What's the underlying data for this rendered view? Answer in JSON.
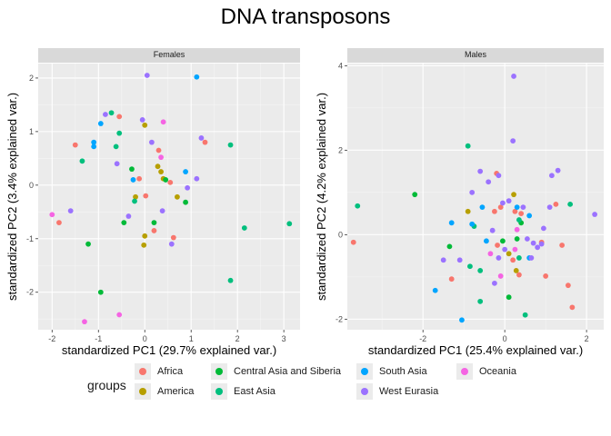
{
  "title": "DNA transposons",
  "legend": {
    "title": "groups",
    "entries": [
      {
        "label": "Africa",
        "color": "#F8766D"
      },
      {
        "label": "America",
        "color": "#B79F00"
      },
      {
        "label": "Central Asia and Siberia",
        "color": "#00BA38"
      },
      {
        "label": "East Asia",
        "color": "#00BF7D"
      },
      {
        "label": "South Asia",
        "color": "#00A5FF"
      },
      {
        "label": "West Eurasia",
        "color": "#9B72FF"
      },
      {
        "label": "Oceania",
        "color": "#F564E3"
      }
    ]
  },
  "chart_data": [
    {
      "type": "scatter",
      "facet": "Females",
      "xlabel": "standardized PC1 (29.7% explained var.)",
      "ylabel": "standardized PC2 (3.4% explained var.)",
      "xlim": [
        -2.3,
        3.35
      ],
      "ylim": [
        -2.7,
        2.27
      ],
      "xticks": [
        -2,
        -1,
        0,
        1,
        2,
        3
      ],
      "yticks": [
        -2,
        -1,
        0,
        1,
        2
      ],
      "grid": true,
      "points": [
        {
          "x": -1.5,
          "y": 0.75,
          "g": "Africa"
        },
        {
          "x": -1.85,
          "y": -0.7,
          "g": "Africa"
        },
        {
          "x": -0.55,
          "y": 1.28,
          "g": "Africa"
        },
        {
          "x": 0.02,
          "y": -0.2,
          "g": "Africa"
        },
        {
          "x": 0.3,
          "y": 0.65,
          "g": "Africa"
        },
        {
          "x": -0.12,
          "y": 0.12,
          "g": "Africa"
        },
        {
          "x": 0.2,
          "y": -0.85,
          "g": "Africa"
        },
        {
          "x": 0.62,
          "y": -0.98,
          "g": "Africa"
        },
        {
          "x": 0.55,
          "y": 0.05,
          "g": "Africa"
        },
        {
          "x": 1.3,
          "y": 0.8,
          "g": "Africa"
        },
        {
          "x": 0.0,
          "y": 1.12,
          "g": "America"
        },
        {
          "x": 0.28,
          "y": 0.35,
          "g": "America"
        },
        {
          "x": 0.35,
          "y": 0.25,
          "g": "America"
        },
        {
          "x": -0.2,
          "y": -0.22,
          "g": "America"
        },
        {
          "x": 0.0,
          "y": -0.95,
          "g": "America"
        },
        {
          "x": -0.02,
          "y": -1.12,
          "g": "America"
        },
        {
          "x": 0.7,
          "y": -0.22,
          "g": "America"
        },
        {
          "x": 0.4,
          "y": 0.12,
          "g": "America"
        },
        {
          "x": -0.95,
          "y": -2.0,
          "g": "Central Asia and Siberia"
        },
        {
          "x": -1.22,
          "y": -1.1,
          "g": "Central Asia and Siberia"
        },
        {
          "x": -0.45,
          "y": -0.7,
          "g": "Central Asia and Siberia"
        },
        {
          "x": 0.2,
          "y": -0.7,
          "g": "Central Asia and Siberia"
        },
        {
          "x": 0.88,
          "y": -0.32,
          "g": "Central Asia and Siberia"
        },
        {
          "x": 0.45,
          "y": 0.1,
          "g": "Central Asia and Siberia"
        },
        {
          "x": -0.28,
          "y": 0.3,
          "g": "Central Asia and Siberia"
        },
        {
          "x": -1.35,
          "y": 0.45,
          "g": "East Asia"
        },
        {
          "x": -0.72,
          "y": 1.35,
          "g": "East Asia"
        },
        {
          "x": -0.62,
          "y": 0.72,
          "g": "East Asia"
        },
        {
          "x": -0.55,
          "y": 0.97,
          "g": "East Asia"
        },
        {
          "x": -0.22,
          "y": -0.3,
          "g": "East Asia"
        },
        {
          "x": 1.85,
          "y": 0.75,
          "g": "East Asia"
        },
        {
          "x": 2.15,
          "y": -0.8,
          "g": "East Asia"
        },
        {
          "x": 3.12,
          "y": -0.72,
          "g": "East Asia"
        },
        {
          "x": 1.85,
          "y": -1.78,
          "g": "East Asia"
        },
        {
          "x": -1.1,
          "y": 0.8,
          "g": "South Asia"
        },
        {
          "x": -1.1,
          "y": 0.72,
          "g": "South Asia"
        },
        {
          "x": -0.95,
          "y": 1.15,
          "g": "South Asia"
        },
        {
          "x": 1.12,
          "y": 2.02,
          "g": "South Asia"
        },
        {
          "x": 0.88,
          "y": 0.25,
          "g": "South Asia"
        },
        {
          "x": -0.25,
          "y": 0.1,
          "g": "South Asia"
        },
        {
          "x": -1.6,
          "y": -0.48,
          "g": "West Eurasia"
        },
        {
          "x": -0.85,
          "y": 1.32,
          "g": "West Eurasia"
        },
        {
          "x": -0.05,
          "y": 1.22,
          "g": "West Eurasia"
        },
        {
          "x": 0.05,
          "y": 2.05,
          "g": "West Eurasia"
        },
        {
          "x": 0.15,
          "y": 0.8,
          "g": "West Eurasia"
        },
        {
          "x": -0.6,
          "y": 0.4,
          "g": "West Eurasia"
        },
        {
          "x": 0.38,
          "y": -0.48,
          "g": "West Eurasia"
        },
        {
          "x": -0.35,
          "y": -0.58,
          "g": "West Eurasia"
        },
        {
          "x": 0.58,
          "y": -1.1,
          "g": "West Eurasia"
        },
        {
          "x": 1.22,
          "y": 0.88,
          "g": "West Eurasia"
        },
        {
          "x": 1.12,
          "y": 0.12,
          "g": "West Eurasia"
        },
        {
          "x": 0.92,
          "y": -0.05,
          "g": "West Eurasia"
        },
        {
          "x": -2.0,
          "y": -0.55,
          "g": "Oceania"
        },
        {
          "x": -1.3,
          "y": -2.55,
          "g": "Oceania"
        },
        {
          "x": -0.55,
          "y": -2.42,
          "g": "Oceania"
        },
        {
          "x": 0.4,
          "y": 1.18,
          "g": "Oceania"
        },
        {
          "x": 0.35,
          "y": 0.52,
          "g": "Oceania"
        }
      ]
    },
    {
      "type": "scatter",
      "facet": "Males",
      "xlabel": "standardized PC1 (25.4% explained var.)",
      "ylabel": "standardized PC2 (4.2% explained var.)",
      "xlim": [
        -3.85,
        2.42
      ],
      "ylim": [
        -2.25,
        4.05
      ],
      "xticks": [
        -2,
        0,
        2
      ],
      "yticks": [
        -2,
        0,
        2,
        4
      ],
      "grid": true,
      "points": [
        {
          "x": -3.7,
          "y": -0.18,
          "g": "Africa"
        },
        {
          "x": -1.3,
          "y": -1.05,
          "g": "Africa"
        },
        {
          "x": -0.2,
          "y": 1.45,
          "g": "Africa"
        },
        {
          "x": -0.25,
          "y": 0.55,
          "g": "Africa"
        },
        {
          "x": -0.1,
          "y": 0.65,
          "g": "Africa"
        },
        {
          "x": -0.18,
          "y": -0.25,
          "g": "Africa"
        },
        {
          "x": 0.25,
          "y": 0.55,
          "g": "Africa"
        },
        {
          "x": 0.2,
          "y": -0.6,
          "g": "Africa"
        },
        {
          "x": 0.35,
          "y": -0.95,
          "g": "Africa"
        },
        {
          "x": 0.9,
          "y": -0.18,
          "g": "Africa"
        },
        {
          "x": 1.0,
          "y": -0.98,
          "g": "Africa"
        },
        {
          "x": 1.25,
          "y": 0.72,
          "g": "Africa"
        },
        {
          "x": 1.4,
          "y": -0.25,
          "g": "Africa"
        },
        {
          "x": 1.55,
          "y": -1.2,
          "g": "Africa"
        },
        {
          "x": 1.65,
          "y": -1.72,
          "g": "Africa"
        },
        {
          "x": 0.4,
          "y": 0.5,
          "g": "Africa"
        },
        {
          "x": -0.9,
          "y": 0.55,
          "g": "America"
        },
        {
          "x": 0.22,
          "y": 0.95,
          "g": "America"
        },
        {
          "x": 0.28,
          "y": -0.85,
          "g": "America"
        },
        {
          "x": 0.1,
          "y": -0.45,
          "g": "America"
        },
        {
          "x": -2.2,
          "y": 0.95,
          "g": "Central Asia and Siberia"
        },
        {
          "x": -1.35,
          "y": -0.28,
          "g": "Central Asia and Siberia"
        },
        {
          "x": -0.05,
          "y": -0.15,
          "g": "Central Asia and Siberia"
        },
        {
          "x": 0.1,
          "y": -1.48,
          "g": "Central Asia and Siberia"
        },
        {
          "x": 0.4,
          "y": 0.28,
          "g": "Central Asia and Siberia"
        },
        {
          "x": 0.3,
          "y": -0.1,
          "g": "Central Asia and Siberia"
        },
        {
          "x": -3.6,
          "y": 0.68,
          "g": "East Asia"
        },
        {
          "x": -0.9,
          "y": 2.1,
          "g": "East Asia"
        },
        {
          "x": -0.75,
          "y": 0.2,
          "g": "East Asia"
        },
        {
          "x": -0.6,
          "y": -0.85,
          "g": "East Asia"
        },
        {
          "x": -0.6,
          "y": -1.58,
          "g": "East Asia"
        },
        {
          "x": 0.35,
          "y": -0.55,
          "g": "East Asia"
        },
        {
          "x": 0.35,
          "y": 0.35,
          "g": "East Asia"
        },
        {
          "x": 0.5,
          "y": -1.9,
          "g": "East Asia"
        },
        {
          "x": 1.6,
          "y": 0.72,
          "g": "East Asia"
        },
        {
          "x": -0.85,
          "y": -0.75,
          "g": "East Asia"
        },
        {
          "x": -1.7,
          "y": -1.32,
          "g": "South Asia"
        },
        {
          "x": -1.3,
          "y": 0.28,
          "g": "South Asia"
        },
        {
          "x": -1.05,
          "y": -2.02,
          "g": "South Asia"
        },
        {
          "x": -0.8,
          "y": 0.25,
          "g": "South Asia"
        },
        {
          "x": -0.55,
          "y": 0.65,
          "g": "South Asia"
        },
        {
          "x": -0.45,
          "y": -0.15,
          "g": "South Asia"
        },
        {
          "x": 0.3,
          "y": 0.65,
          "g": "South Asia"
        },
        {
          "x": 0.6,
          "y": 0.45,
          "g": "South Asia"
        },
        {
          "x": 0.6,
          "y": -0.55,
          "g": "South Asia"
        },
        {
          "x": 0.22,
          "y": 3.75,
          "g": "West Eurasia"
        },
        {
          "x": 0.2,
          "y": 2.22,
          "g": "West Eurasia"
        },
        {
          "x": -0.6,
          "y": 1.5,
          "g": "West Eurasia"
        },
        {
          "x": -0.4,
          "y": 1.25,
          "g": "West Eurasia"
        },
        {
          "x": -0.3,
          "y": 0.1,
          "g": "West Eurasia"
        },
        {
          "x": -0.15,
          "y": 1.4,
          "g": "West Eurasia"
        },
        {
          "x": -0.05,
          "y": 0.75,
          "g": "West Eurasia"
        },
        {
          "x": -0.15,
          "y": -0.55,
          "g": "West Eurasia"
        },
        {
          "x": -1.5,
          "y": -0.6,
          "g": "West Eurasia"
        },
        {
          "x": -1.1,
          "y": -0.6,
          "g": "West Eurasia"
        },
        {
          "x": -0.8,
          "y": 1.0,
          "g": "West Eurasia"
        },
        {
          "x": 0.1,
          "y": 0.8,
          "g": "West Eurasia"
        },
        {
          "x": 0.45,
          "y": 0.65,
          "g": "West Eurasia"
        },
        {
          "x": 0.55,
          "y": -0.1,
          "g": "West Eurasia"
        },
        {
          "x": 0.7,
          "y": -0.2,
          "g": "West Eurasia"
        },
        {
          "x": 0.8,
          "y": -0.3,
          "g": "West Eurasia"
        },
        {
          "x": 0.95,
          "y": 0.15,
          "g": "West Eurasia"
        },
        {
          "x": 1.1,
          "y": 0.65,
          "g": "West Eurasia"
        },
        {
          "x": 1.15,
          "y": 1.4,
          "g": "West Eurasia"
        },
        {
          "x": 1.3,
          "y": 1.52,
          "g": "West Eurasia"
        },
        {
          "x": 2.2,
          "y": 0.48,
          "g": "West Eurasia"
        },
        {
          "x": 0.65,
          "y": -0.55,
          "g": "West Eurasia"
        },
        {
          "x": 0.0,
          "y": -0.35,
          "g": "West Eurasia"
        },
        {
          "x": 0.9,
          "y": -0.22,
          "g": "West Eurasia"
        },
        {
          "x": -0.25,
          "y": -1.15,
          "g": "West Eurasia"
        },
        {
          "x": -0.35,
          "y": -0.45,
          "g": "Oceania"
        },
        {
          "x": -0.1,
          "y": -0.98,
          "g": "Oceania"
        },
        {
          "x": 0.25,
          "y": -0.35,
          "g": "Oceania"
        },
        {
          "x": 0.3,
          "y": 0.12,
          "g": "Oceania"
        }
      ]
    }
  ]
}
